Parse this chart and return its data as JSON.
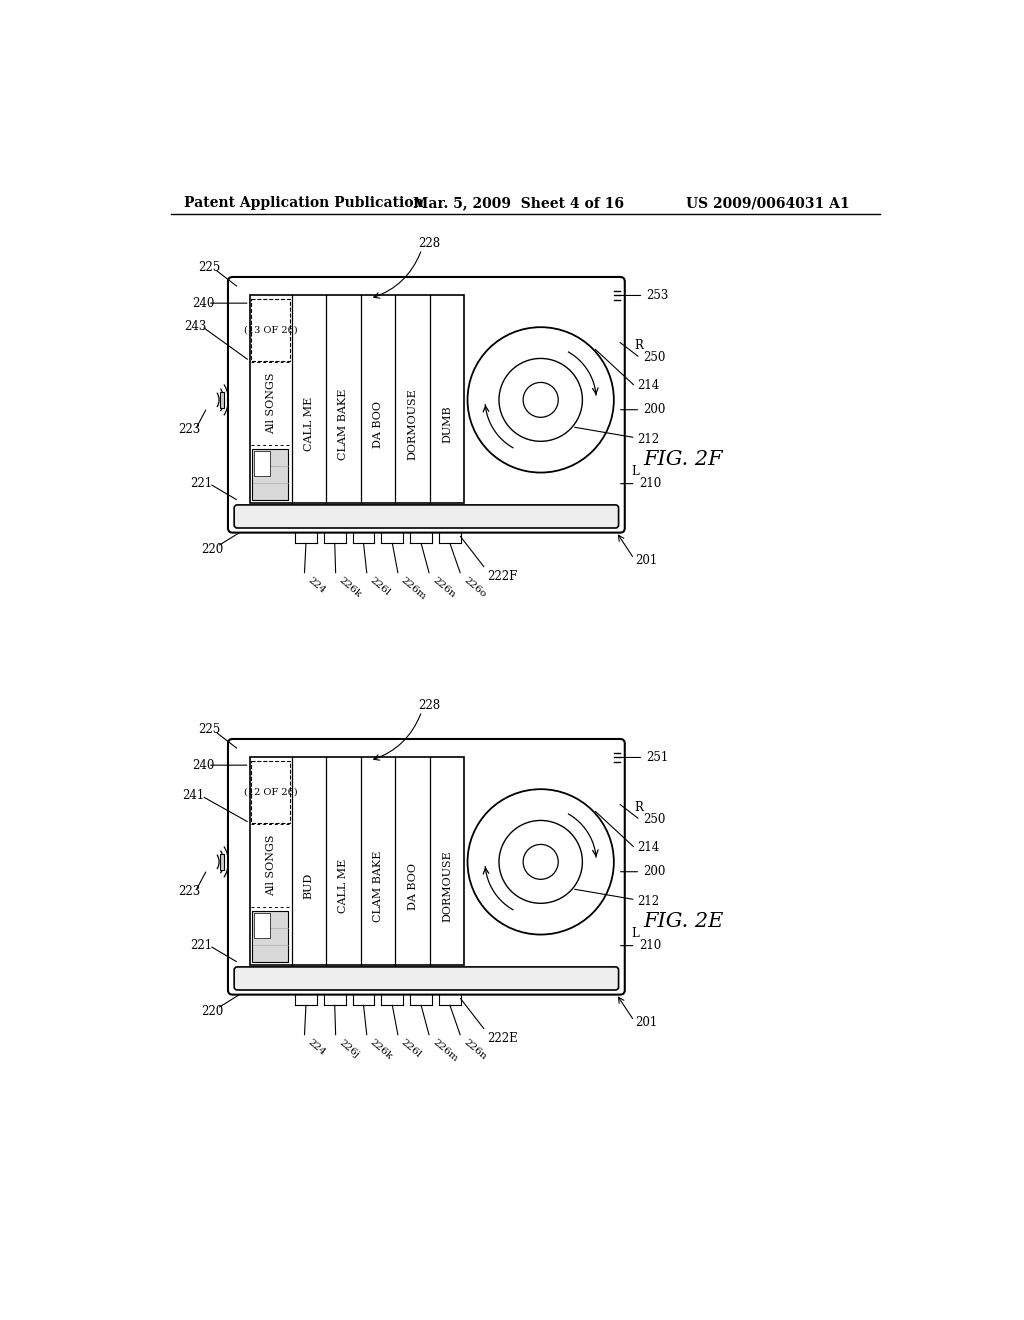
{
  "bg_color": "#ffffff",
  "header_left": "Patent Application Publication",
  "header_mid": "Mar. 5, 2009  Sheet 4 of 16",
  "header_right": "US 2009/0064031 A1",
  "fig2f": {
    "fig_label": "FIG. 2F",
    "count_label": "(13 OF 26)",
    "songs": [
      "CALL ME",
      "CLAM BAKE",
      "DA BOO",
      "DORMOUSE",
      "DUMB"
    ],
    "star_col": 2,
    "bottom_labels": [
      "224",
      "226k",
      "226l",
      "226m",
      "226n",
      "226o"
    ],
    "fig_label_bottom": "222F",
    "label_240": "240",
    "label_243": "243",
    "label_241": "",
    "label_221": "221",
    "label_220": "220",
    "label_225": "225",
    "label_223": "223",
    "label_228": "228",
    "label_top_right": "253",
    "label_250": "250",
    "label_214": "214",
    "label_200": "200",
    "label_212": "212",
    "label_210": "210",
    "label_201": "201",
    "label_R": "R",
    "label_L": "L"
  },
  "fig2e": {
    "fig_label": "FIG. 2E",
    "count_label": "(12 OF 26)",
    "songs": [
      "BUD",
      "CALL ME",
      "CLAM BAKE",
      "DA BOO",
      "DORMOUSE"
    ],
    "star_col": 2,
    "bottom_labels": [
      "224",
      "226j",
      "226k",
      "226l",
      "226m",
      "226n"
    ],
    "fig_label_bottom": "222E",
    "label_240": "240",
    "label_243": "",
    "label_241": "241",
    "label_221": "221",
    "label_220": "220",
    "label_225": "225",
    "label_223": "223",
    "label_228": "228",
    "label_top_right": "251",
    "label_250": "250",
    "label_214": "214",
    "label_200": "200",
    "label_212": "212",
    "label_210": "210",
    "label_201": "201",
    "label_R": "R",
    "label_L": "L"
  }
}
